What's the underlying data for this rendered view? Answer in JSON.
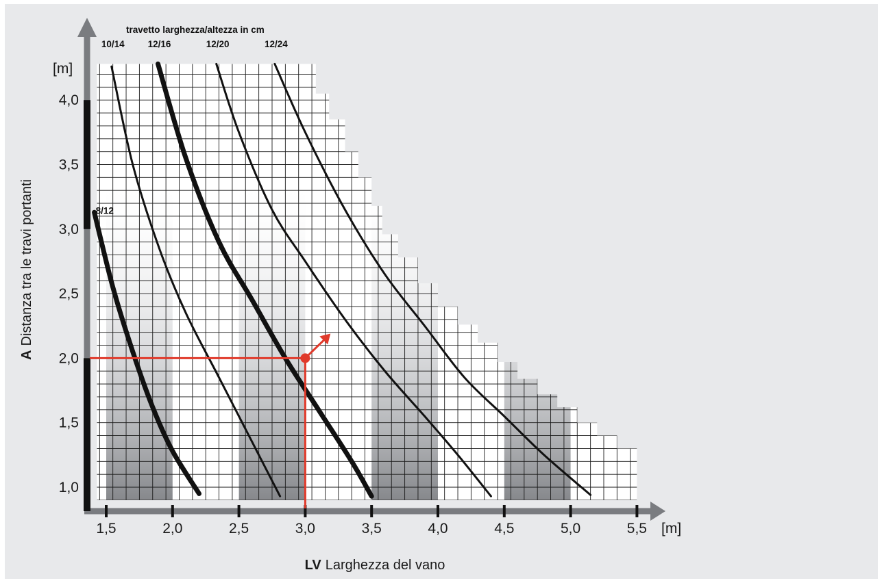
{
  "chart_data": {
    "type": "line",
    "title": "travetto larghezza/altezza in cm",
    "xlabel_prefix": "LV",
    "xlabel": "Larghezza del vano",
    "ylabel_prefix": "A",
    "ylabel": "Distanza tra le travi portanti",
    "x_unit": "[m]",
    "y_unit": "[m]",
    "xlim": [
      1.42,
      5.55
    ],
    "ylim": [
      0.88,
      4.3
    ],
    "x_ticks": [
      "1,5",
      "2,0",
      "2,5",
      "3,0",
      "3,5",
      "4,0",
      "4,5",
      "5,0",
      "5,5"
    ],
    "x_tick_values": [
      1.5,
      2.0,
      2.5,
      3.0,
      3.5,
      4.0,
      4.5,
      5.0,
      5.5
    ],
    "y_ticks": [
      "1,0",
      "1,5",
      "2,0",
      "2,5",
      "3,0",
      "3,5",
      "4,0"
    ],
    "y_tick_values": [
      1.0,
      1.5,
      2.0,
      2.5,
      3.0,
      3.5,
      4.0
    ],
    "grid": true,
    "series": [
      {
        "name": "8/12",
        "thick": true,
        "x": [
          1.41,
          1.55,
          1.7,
          1.85,
          2.0,
          2.2
        ],
        "y": [
          3.13,
          2.55,
          2.05,
          1.62,
          1.28,
          0.95
        ]
      },
      {
        "name": "10/14",
        "thick": false,
        "x": [
          1.54,
          1.7,
          1.9,
          2.1,
          2.35,
          2.6,
          2.81
        ],
        "y": [
          4.26,
          3.5,
          2.85,
          2.35,
          1.85,
          1.35,
          0.93
        ]
      },
      {
        "name": "12/16",
        "thick": true,
        "x": [
          1.89,
          2.1,
          2.35,
          2.6,
          2.85,
          3.1,
          3.35,
          3.5
        ],
        "y": [
          4.28,
          3.55,
          2.9,
          2.45,
          2.0,
          1.6,
          1.2,
          0.93
        ]
      },
      {
        "name": "12/20",
        "thick": false,
        "x": [
          2.33,
          2.5,
          2.75,
          3.0,
          3.3,
          3.6,
          3.9,
          4.15,
          4.4
        ],
        "y": [
          4.28,
          3.75,
          3.15,
          2.75,
          2.3,
          1.9,
          1.55,
          1.25,
          0.93
        ]
      },
      {
        "name": "12/24",
        "thick": false,
        "x": [
          2.77,
          3.0,
          3.3,
          3.6,
          3.9,
          4.2,
          4.5,
          4.8,
          5.15
        ],
        "y": [
          4.28,
          3.75,
          3.15,
          2.65,
          2.25,
          1.85,
          1.55,
          1.25,
          0.94
        ]
      }
    ],
    "example": {
      "point": {
        "x": 3.0,
        "y": 2.0
      },
      "arrow_to": {
        "x": 3.18,
        "y": 2.18
      },
      "color": "#e03a2b"
    },
    "colors": {
      "curve": "#111111",
      "grid": "#1a1a1a",
      "axis": "#7a7c80",
      "axis_marker": "#111111",
      "background": "#e8e9eb",
      "example": "#e03a2b"
    }
  }
}
